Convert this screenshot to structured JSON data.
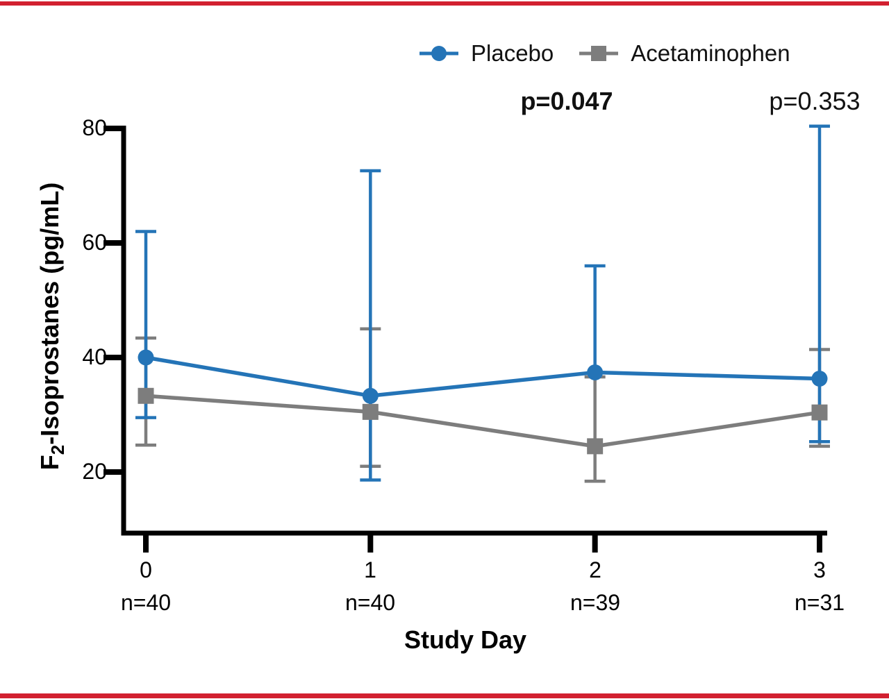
{
  "figure": {
    "border_color": "#d22030",
    "background": "#ffffff",
    "axis_color": "#000000"
  },
  "legend": {
    "items": [
      {
        "label": "Placebo",
        "marker": "circle",
        "color": "#2474b7"
      },
      {
        "label": "Acetaminophen",
        "marker": "square",
        "color": "#7d7d7d"
      }
    ]
  },
  "annotations": [
    {
      "text": "p=0.047",
      "bold": true,
      "day": 2
    },
    {
      "text": "p=0.353",
      "bold": false,
      "day": 3
    }
  ],
  "ylabel_parts": {
    "base": "F",
    "sub": "2",
    "rest": "-Isoprostanes (pg/mL)"
  },
  "chart_data": {
    "type": "line",
    "title": "",
    "xlabel": "Study Day",
    "ylabel": "F2-Isoprostanes (pg/mL)",
    "x": [
      0,
      1,
      2,
      3
    ],
    "x_tick_labels": [
      "0",
      "1",
      "2",
      "3"
    ],
    "n_labels": [
      "n=40",
      "n=40",
      "n=39",
      "n=31"
    ],
    "yticks": [
      80,
      60,
      40,
      20
    ],
    "ytick_labels": [
      "80",
      "60",
      "40",
      "20"
    ],
    "ylim": [
      9,
      80.6
    ],
    "grid": false,
    "legend_position": "top",
    "error_bars": true,
    "series": [
      {
        "name": "Placebo",
        "marker": "circle",
        "color": "#2474b7",
        "values": [
          40.0,
          33.3,
          37.4,
          36.3
        ],
        "err_low": [
          29.5,
          18.6,
          null,
          25.3
        ],
        "err_high": [
          62.0,
          72.6,
          56.0,
          80.4
        ]
      },
      {
        "name": "Acetaminophen",
        "marker": "square",
        "color": "#7d7d7d",
        "values": [
          33.3,
          30.5,
          24.5,
          30.4
        ],
        "err_low": [
          24.7,
          21.0,
          18.4,
          24.5
        ],
        "err_high": [
          43.4,
          45.0,
          36.6,
          41.4
        ]
      }
    ]
  }
}
